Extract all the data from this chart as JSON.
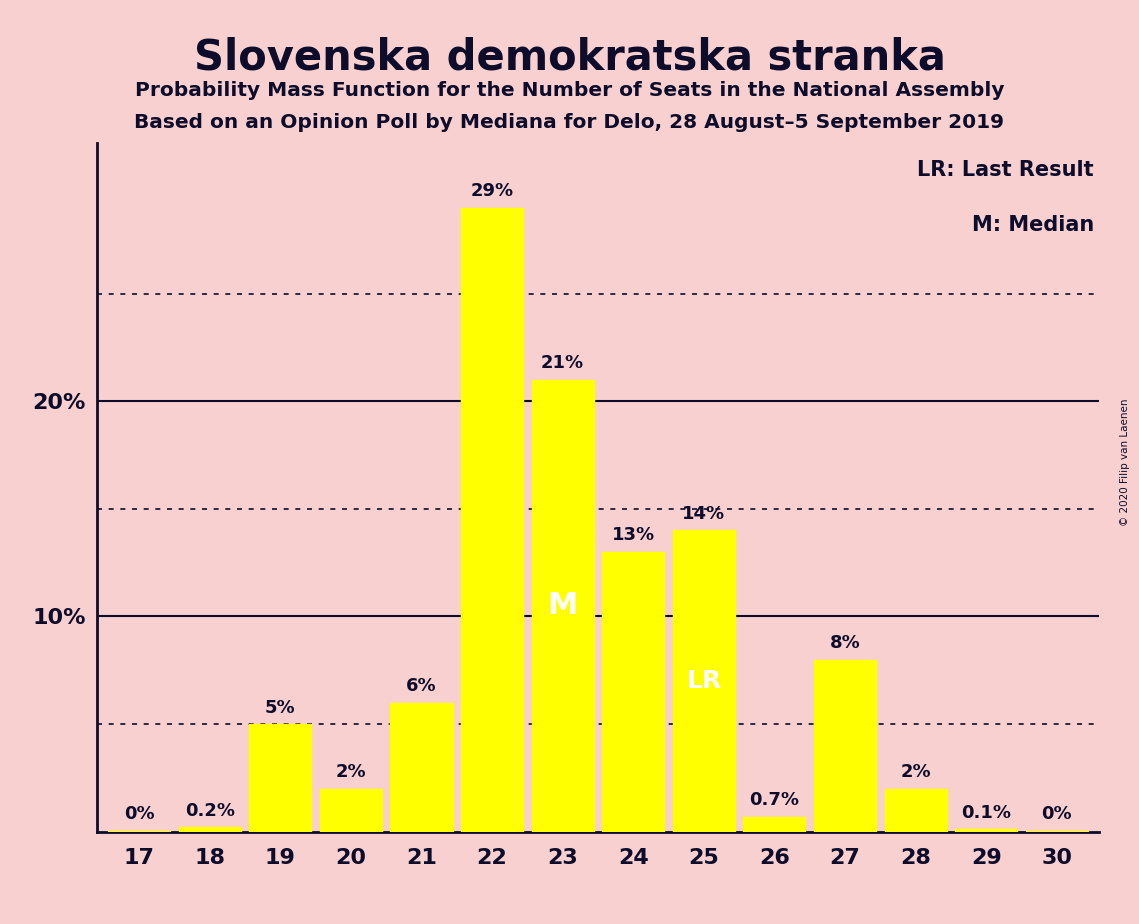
{
  "title": "Slovenska demokratska stranka",
  "subtitle1": "Probability Mass Function for the Number of Seats in the National Assembly",
  "subtitle2": "Based on an Opinion Poll by Mediana for Delo, 28 August–5 September 2019",
  "copyright": "© 2020 Filip van Laenen",
  "seats": [
    17,
    18,
    19,
    20,
    21,
    22,
    23,
    24,
    25,
    26,
    27,
    28,
    29,
    30
  ],
  "probabilities": [
    0.05,
    0.2,
    5.0,
    2.0,
    6.0,
    29.0,
    21.0,
    13.0,
    14.0,
    0.7,
    8.0,
    2.0,
    0.1,
    0.05
  ],
  "labels": [
    "0%",
    "0.2%",
    "5%",
    "2%",
    "6%",
    "29%",
    "21%",
    "13%",
    "14%",
    "0.7%",
    "8%",
    "2%",
    "0.1%",
    "0%"
  ],
  "bar_color": "#FFFF00",
  "background_color": "#F9D0D0",
  "text_color": "#0d0d2b",
  "median_seat": 23,
  "lr_seat": 25,
  "legend_lr": "LR: Last Result",
  "legend_m": "M: Median",
  "dotted_lines": [
    5,
    15,
    25
  ],
  "solid_lines": [
    10,
    20
  ],
  "ylim": [
    0,
    32
  ],
  "bar_width": 0.88
}
